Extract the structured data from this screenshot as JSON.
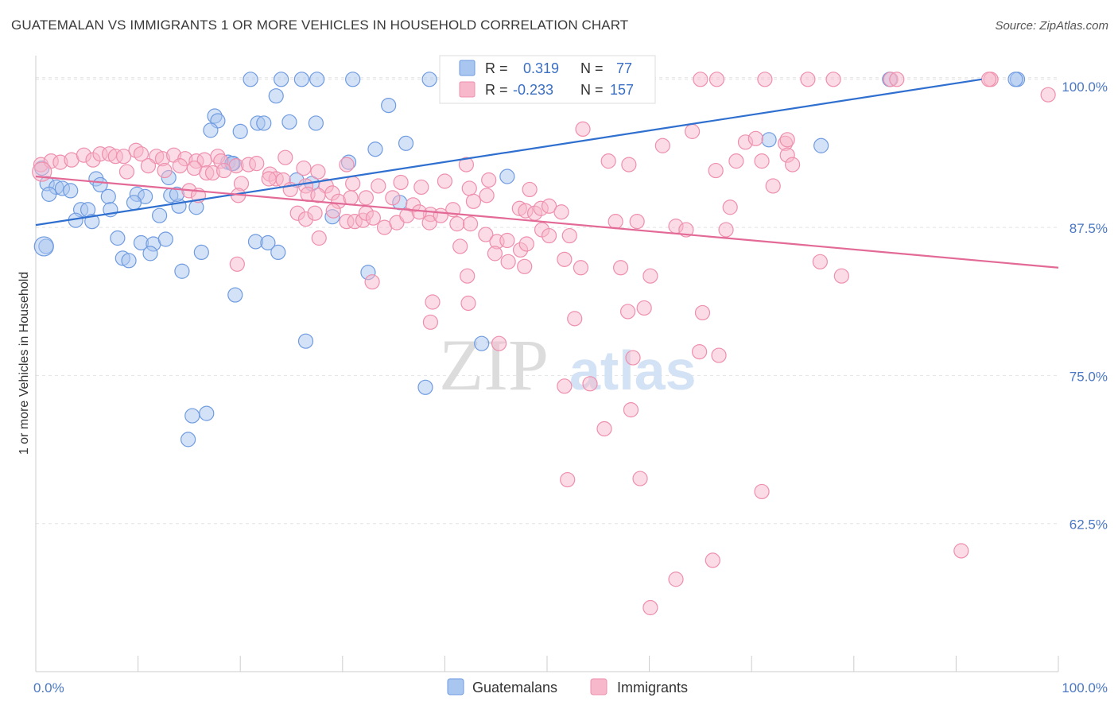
{
  "header": {
    "title": "GUATEMALAN VS IMMIGRANTS 1 OR MORE VEHICLES IN HOUSEHOLD CORRELATION CHART",
    "source": "Source: ZipAtlas.com"
  },
  "watermark": {
    "zip": "ZIP",
    "atlas": "atlas"
  },
  "chart_data": {
    "type": "scatter",
    "ylabel": "1 or more Vehicles in Household",
    "xlim": [
      0,
      100
    ],
    "ylim": [
      50,
      102
    ],
    "x_ticks": [
      "0.0%",
      "100.0%"
    ],
    "y_ticks": [
      {
        "value": 100,
        "label": "100.0%"
      },
      {
        "value": 87.5,
        "label": "87.5%"
      },
      {
        "value": 75,
        "label": "75.0%"
      },
      {
        "value": 62.5,
        "label": "62.5%"
      }
    ],
    "grid": true,
    "legend_position": "bottom",
    "stats": [
      {
        "r_label": "R =",
        "r": "0.319",
        "n_label": "N =",
        "n": "77",
        "color": "#a9c6f0",
        "stroke": "#6f9be0"
      },
      {
        "r_label": "R =",
        "r": "-0.233",
        "n_label": "N =",
        "n": "157",
        "color": "#f8b8cc",
        "stroke": "#ee8fad"
      }
    ],
    "series": [
      {
        "name": "Guatemalans",
        "color": "#a9c6f0",
        "stroke": "#6f9be0",
        "trend_color": "#2f6fcf",
        "trend": [
          [
            0,
            87.7
          ],
          [
            92.5,
            100
          ]
        ],
        "points": [
          [
            21,
            100
          ],
          [
            24,
            100
          ],
          [
            26,
            100
          ],
          [
            27.5,
            100
          ],
          [
            31,
            100
          ],
          [
            38.5,
            100
          ],
          [
            52.5,
            100
          ],
          [
            83.5,
            100
          ],
          [
            96,
            100
          ],
          [
            95.8,
            100
          ],
          [
            23.5,
            98.6
          ],
          [
            34.5,
            97.8
          ],
          [
            17.5,
            96.9
          ],
          [
            17.8,
            96.5
          ],
          [
            21.7,
            96.3
          ],
          [
            22.3,
            96.3
          ],
          [
            24.8,
            96.4
          ],
          [
            27.4,
            96.3
          ],
          [
            17.1,
            95.7
          ],
          [
            20,
            95.6
          ],
          [
            36.2,
            94.6
          ],
          [
            71.7,
            94.9
          ],
          [
            76.8,
            94.4
          ],
          [
            33.2,
            94.1
          ],
          [
            30.6,
            93
          ],
          [
            18.8,
            93
          ],
          [
            19.3,
            92.9
          ],
          [
            0.6,
            92.5
          ],
          [
            1.1,
            91.2
          ],
          [
            2,
            90.9
          ],
          [
            2.6,
            90.8
          ],
          [
            1.3,
            90.3
          ],
          [
            3.4,
            90.6
          ],
          [
            5.9,
            91.6
          ],
          [
            6.3,
            91.1
          ],
          [
            7.1,
            90.1
          ],
          [
            9.9,
            90.3
          ],
          [
            10.7,
            90.1
          ],
          [
            13,
            91.7
          ],
          [
            13.2,
            90.2
          ],
          [
            14,
            89.3
          ],
          [
            15.7,
            89.2
          ],
          [
            4.4,
            89
          ],
          [
            5.1,
            89
          ],
          [
            7.3,
            89
          ],
          [
            9.6,
            89.6
          ],
          [
            25.5,
            91.5
          ],
          [
            35.6,
            89.6
          ],
          [
            46.1,
            91.8
          ],
          [
            5.5,
            88
          ],
          [
            3.9,
            88.1
          ],
          [
            29,
            88.4
          ],
          [
            1,
            85.9
          ],
          [
            8,
            86.6
          ],
          [
            10.3,
            86.2
          ],
          [
            11.5,
            86.1
          ],
          [
            12.7,
            86.5
          ],
          [
            21.5,
            86.3
          ],
          [
            22.7,
            86.2
          ],
          [
            11.2,
            85.3
          ],
          [
            16.2,
            85.4
          ],
          [
            23.7,
            85.4
          ],
          [
            8.5,
            84.9
          ],
          [
            9.1,
            84.7
          ],
          [
            14.3,
            83.8
          ],
          [
            32.5,
            83.7
          ],
          [
            19.5,
            81.8
          ],
          [
            26.4,
            77.9
          ],
          [
            43.6,
            77.7
          ],
          [
            38.1,
            74
          ],
          [
            15.3,
            71.6
          ],
          [
            16.7,
            71.8
          ],
          [
            14.9,
            69.6
          ],
          [
            19.2,
            92.9
          ],
          [
            13.8,
            90.3
          ],
          [
            12.1,
            88.5
          ],
          [
            27,
            91.2
          ]
        ]
      },
      {
        "name": "Immigrants",
        "color": "#f8b8cc",
        "stroke": "#ee8fad",
        "trend_color": "#e36a96",
        "trend": [
          [
            0,
            91.8
          ],
          [
            100,
            84.1
          ]
        ],
        "points": [
          [
            65,
            100
          ],
          [
            66.6,
            100
          ],
          [
            71.3,
            100
          ],
          [
            75.5,
            100
          ],
          [
            78,
            100
          ],
          [
            83.6,
            100
          ],
          [
            84.2,
            100
          ],
          [
            93.4,
            100
          ],
          [
            99,
            98.7
          ],
          [
            53.5,
            95.8
          ],
          [
            61.3,
            94.4
          ],
          [
            64.2,
            95.6
          ],
          [
            69.4,
            94.7
          ],
          [
            70.4,
            95
          ],
          [
            73.3,
            94.6
          ],
          [
            73.5,
            94.9
          ],
          [
            56,
            93.1
          ],
          [
            58,
            92.8
          ],
          [
            66.5,
            92.3
          ],
          [
            68.5,
            93.1
          ],
          [
            71,
            93.1
          ],
          [
            73.5,
            93.6
          ],
          [
            74,
            92.8
          ],
          [
            0.5,
            92.8
          ],
          [
            1.5,
            93.1
          ],
          [
            2.4,
            93
          ],
          [
            3.5,
            93.2
          ],
          [
            4.7,
            93.6
          ],
          [
            5.6,
            93.2
          ],
          [
            6.3,
            93.7
          ],
          [
            7.2,
            93.7
          ],
          [
            7.8,
            93.5
          ],
          [
            8.6,
            93.5
          ],
          [
            9.8,
            94
          ],
          [
            10.3,
            93.7
          ],
          [
            11.8,
            93.5
          ],
          [
            12.4,
            93.3
          ],
          [
            13.5,
            93.6
          ],
          [
            14.6,
            93.3
          ],
          [
            15.7,
            93.1
          ],
          [
            16.5,
            93.2
          ],
          [
            17.8,
            93.5
          ],
          [
            18.1,
            93.1
          ],
          [
            19.6,
            92.7
          ],
          [
            20.8,
            92.8
          ],
          [
            21.6,
            92.9
          ],
          [
            24.4,
            93.4
          ],
          [
            26.2,
            92.5
          ],
          [
            27.6,
            92.2
          ],
          [
            30.4,
            92.8
          ],
          [
            8.9,
            92.2
          ],
          [
            11,
            92.7
          ],
          [
            12.6,
            92.3
          ],
          [
            14.1,
            92.7
          ],
          [
            15.5,
            92.5
          ],
          [
            16.7,
            92.1
          ],
          [
            17.3,
            92.1
          ],
          [
            18.4,
            92.3
          ],
          [
            22.9,
            92
          ],
          [
            23.5,
            91.6
          ],
          [
            24.2,
            91.5
          ],
          [
            26.4,
            91
          ],
          [
            28.4,
            91
          ],
          [
            29,
            90.4
          ],
          [
            31,
            91.2
          ],
          [
            33.5,
            91
          ],
          [
            35.7,
            91.3
          ],
          [
            37.7,
            90.9
          ],
          [
            40,
            91.4
          ],
          [
            42.4,
            90.8
          ],
          [
            44.3,
            91.5
          ],
          [
            48.3,
            90.7
          ],
          [
            20.1,
            91.2
          ],
          [
            19.8,
            90.2
          ],
          [
            15,
            90.6
          ],
          [
            15.9,
            90.2
          ],
          [
            22.8,
            91.6
          ],
          [
            24.9,
            90.7
          ],
          [
            26.6,
            90.3
          ],
          [
            27.6,
            90.2
          ],
          [
            29.6,
            89.7
          ],
          [
            30.8,
            90
          ],
          [
            32.3,
            90
          ],
          [
            34.9,
            90
          ],
          [
            36.9,
            89.4
          ],
          [
            38.6,
            88.6
          ],
          [
            40.8,
            89
          ],
          [
            42.8,
            89.7
          ],
          [
            44.1,
            90.2
          ],
          [
            47.3,
            89.1
          ],
          [
            47.9,
            88.9
          ],
          [
            48.8,
            88.7
          ],
          [
            49.4,
            89.1
          ],
          [
            50.2,
            89.3
          ],
          [
            51.4,
            88.8
          ],
          [
            25.6,
            88.7
          ],
          [
            26.4,
            88.2
          ],
          [
            27.3,
            88.7
          ],
          [
            29.1,
            88.9
          ],
          [
            30.4,
            88
          ],
          [
            31.2,
            88
          ],
          [
            32,
            88.1
          ],
          [
            32.3,
            88.7
          ],
          [
            33,
            88.3
          ],
          [
            34.1,
            87.5
          ],
          [
            35.3,
            87.9
          ],
          [
            36.3,
            88.5
          ],
          [
            37.5,
            88.8
          ],
          [
            38.5,
            87.9
          ],
          [
            39.6,
            88.5
          ],
          [
            41.2,
            87.8
          ],
          [
            42.5,
            87.8
          ],
          [
            44,
            86.9
          ],
          [
            45.1,
            86.3
          ],
          [
            46.1,
            86.4
          ],
          [
            47.4,
            85.6
          ],
          [
            48,
            86.1
          ],
          [
            49.5,
            87.3
          ],
          [
            50.2,
            86.8
          ],
          [
            52.2,
            86.8
          ],
          [
            56.7,
            88
          ],
          [
            58.8,
            88
          ],
          [
            62.6,
            87.6
          ],
          [
            63.6,
            87.3
          ],
          [
            67.5,
            87.3
          ],
          [
            27.7,
            86.6
          ],
          [
            41.5,
            85.9
          ],
          [
            44.9,
            85.3
          ],
          [
            46.2,
            84.6
          ],
          [
            47.8,
            84.2
          ],
          [
            51.7,
            84.8
          ],
          [
            53.3,
            84.1
          ],
          [
            57.2,
            84.1
          ],
          [
            60.1,
            83.4
          ],
          [
            76.7,
            84.6
          ],
          [
            78.8,
            83.4
          ],
          [
            19.7,
            84.4
          ],
          [
            32.9,
            82.9
          ],
          [
            42.2,
            83.4
          ],
          [
            52.7,
            79.8
          ],
          [
            57.9,
            80.4
          ],
          [
            38.8,
            81.2
          ],
          [
            42.3,
            81.1
          ],
          [
            59.5,
            80.7
          ],
          [
            65.2,
            80.3
          ],
          [
            38.6,
            79.5
          ],
          [
            45.3,
            77.7
          ],
          [
            58.4,
            76.5
          ],
          [
            64.9,
            77
          ],
          [
            66.8,
            76.7
          ],
          [
            51.7,
            74.1
          ],
          [
            54.2,
            74.3
          ],
          [
            58.2,
            72.1
          ],
          [
            55.6,
            70.5
          ],
          [
            52,
            66.2
          ],
          [
            59.1,
            66.3
          ],
          [
            71,
            65.2
          ],
          [
            66.2,
            59.4
          ],
          [
            62.6,
            57.8
          ],
          [
            60.1,
            55.4
          ],
          [
            90.5,
            60.2
          ],
          [
            93.2,
            100
          ],
          [
            67.9,
            89.2
          ],
          [
            72.1,
            91
          ],
          [
            42.1,
            92.8
          ]
        ]
      }
    ]
  }
}
